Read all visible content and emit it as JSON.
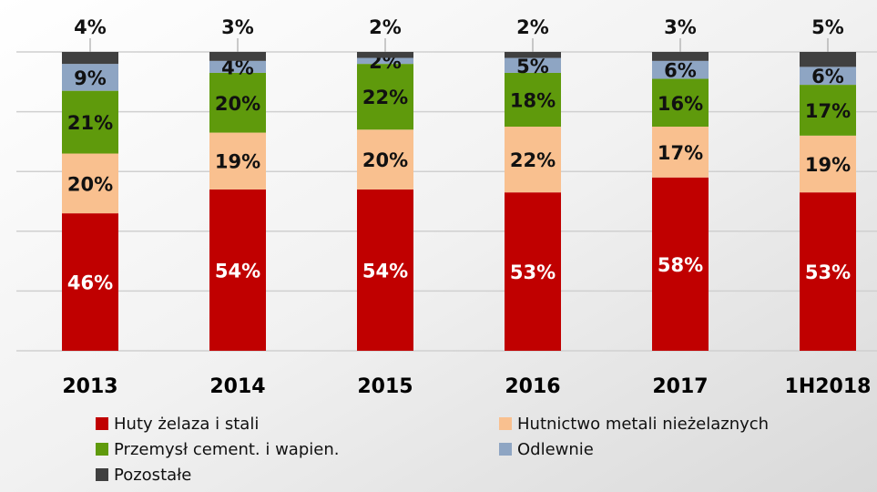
{
  "chart_data": {
    "type": "stacked_bar",
    "categories": [
      "2013",
      "2014",
      "2015",
      "2016",
      "2017",
      "1H2018"
    ],
    "series": [
      {
        "name": "Huty żelaza i stali",
        "color": "#c00000",
        "values": [
          46,
          54,
          54,
          53,
          58,
          53
        ],
        "value_labels": [
          "46%",
          "54%",
          "54%",
          "53%",
          "58%",
          "53%"
        ]
      },
      {
        "name": "Hutnictwo metali nieżelaznych",
        "color": "#f9c08f",
        "values": [
          20,
          19,
          20,
          22,
          17,
          19
        ],
        "value_labels": [
          "20%",
          "19%",
          "20%",
          "22%",
          "17%",
          "19%"
        ]
      },
      {
        "name": "Przemysł cement. i wapien.",
        "color": "#5f9a0c",
        "values": [
          21,
          20,
          22,
          18,
          16,
          17
        ],
        "value_labels": [
          "21%",
          "20%",
          "22%",
          "18%",
          "16%",
          "17%"
        ]
      },
      {
        "name": "Odlewnie",
        "color": "#8ea5c3",
        "values": [
          9,
          4,
          2,
          5,
          6,
          6
        ],
        "value_labels": [
          "9%",
          "4%",
          "2%",
          "5%",
          "6%",
          "6%"
        ]
      },
      {
        "name": "Pozostałe",
        "color": "#404040",
        "values": [
          4,
          3,
          2,
          2,
          3,
          5
        ],
        "value_labels": [
          "4%",
          "3%",
          "2%",
          "2%",
          "3%",
          "5%"
        ]
      }
    ],
    "ylim": [
      0,
      100
    ],
    "gridlines": [
      0,
      20,
      40,
      60,
      80,
      100
    ],
    "grid": true
  }
}
